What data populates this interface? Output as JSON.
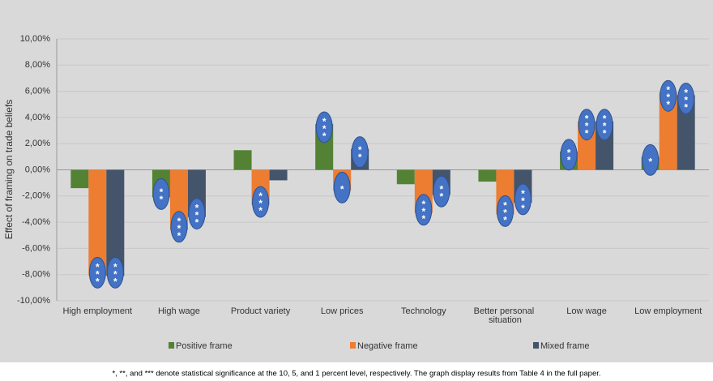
{
  "chart_data": {
    "type": "bar",
    "y_label": "Effect of framing on trade beliefs",
    "categories": [
      "High employment",
      "High wage",
      "Product variety",
      "Low prices",
      "Technology",
      "Better personal situation",
      "Low wage",
      "Low employment"
    ],
    "series": [
      {
        "name": "Positive frame",
        "color": "#548235",
        "values": [
          -1.4,
          -2.1,
          1.5,
          3.5,
          -1.1,
          -0.9,
          1.4,
          1.0
        ],
        "significance": [
          null,
          "**",
          null,
          "***",
          null,
          null,
          "**",
          "*"
        ]
      },
      {
        "name": "Negative frame",
        "color": "#ed7d31",
        "values": [
          -8.1,
          -4.6,
          -2.7,
          -1.6,
          -3.3,
          -3.4,
          3.7,
          5.9
        ],
        "significance": [
          "***",
          "***",
          "***",
          "*",
          "***",
          "***",
          "***",
          "***"
        ]
      },
      {
        "name": "Mixed frame",
        "color": "#44546a",
        "values": [
          -8.1,
          -3.6,
          -0.8,
          1.6,
          -1.9,
          -2.5,
          3.7,
          5.7
        ],
        "significance": [
          "***",
          "***",
          null,
          "**",
          "**",
          "***",
          "***",
          "***"
        ]
      }
    ],
    "ylim": [
      -10,
      10
    ],
    "yticks": [
      {
        "value": -10,
        "label": "-10,00%"
      },
      {
        "value": -8,
        "label": "-8,00%"
      },
      {
        "value": -6,
        "label": "-6,00%"
      },
      {
        "value": -4,
        "label": "-4,00%"
      },
      {
        "value": -2,
        "label": "-2,00%"
      },
      {
        "value": 0,
        "label": "0,00%"
      },
      {
        "value": 2,
        "label": "2,00%"
      },
      {
        "value": 4,
        "label": "4,00%"
      },
      {
        "value": 6,
        "label": "6,00%"
      },
      {
        "value": 8,
        "label": "8,00%"
      },
      {
        "value": 10,
        "label": "10,00%"
      }
    ],
    "grid": true,
    "note": "*, **, and *** denote statistical significance at the 10, 5, and 1 percent level, respectively. The graph display results from Table 4 in the full paper."
  }
}
